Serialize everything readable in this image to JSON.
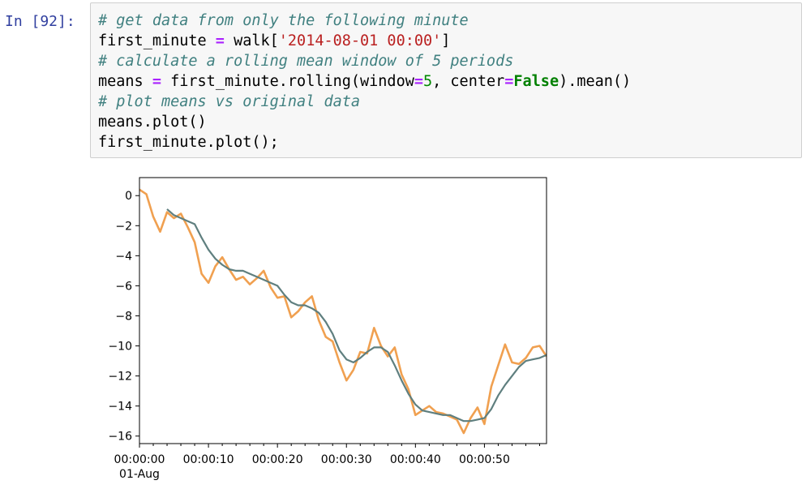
{
  "cell": {
    "prompt": "In [92]:",
    "code": {
      "line1_comment": "# get data from only the following minute",
      "line2_var": "first_minute",
      "line2_op": " = ",
      "line2_call": "walk[",
      "line2_string": "'2014-08-01 00:00'",
      "line2_close": "]",
      "line3_comment": "# calculate a rolling mean window of 5 periods",
      "line4_var": "means",
      "line4_op": " = ",
      "line4_call": "first_minute.rolling(window",
      "line4_eq": "=",
      "line4_num": "5",
      "line4_mid": ", center",
      "line4_eq2": "=",
      "line4_kw": "False",
      "line4_tail": ").mean()",
      "line5_comment": "# plot means vs original data",
      "line6": "means.plot()",
      "line7": "first_minute.plot();"
    }
  },
  "chart_data": {
    "type": "line",
    "xlabel": "",
    "ylabel": "",
    "x_ticks": [
      "00:00:00",
      "00:00:10",
      "00:00:20",
      "00:00:30",
      "00:00:40",
      "00:00:50"
    ],
    "x_tick_secondary": "01-Aug",
    "x_range": [
      0,
      59
    ],
    "y_ticks": [
      0,
      -2,
      -4,
      -6,
      -8,
      -10,
      -12,
      -14,
      -16
    ],
    "ylim": [
      -16.5,
      1.2
    ],
    "grid": false,
    "legend": "none",
    "colors": {
      "original": "#f0a050",
      "rolling_mean": "#5f7f7f"
    },
    "series": [
      {
        "key": "original",
        "x": [
          0,
          1,
          2,
          3,
          4,
          5,
          6,
          7,
          8,
          9,
          10,
          11,
          12,
          13,
          14,
          15,
          16,
          17,
          18,
          19,
          20,
          21,
          22,
          23,
          24,
          25,
          26,
          27,
          28,
          29,
          30,
          31,
          32,
          33,
          34,
          35,
          36,
          37,
          38,
          39,
          40,
          41,
          42,
          43,
          44,
          45,
          46,
          47,
          48,
          49,
          50,
          51,
          52,
          53,
          54,
          55,
          56,
          57,
          58,
          59
        ],
        "y": [
          0.4,
          0.1,
          -1.4,
          -2.4,
          -1.1,
          -1.5,
          -1.2,
          -2.1,
          -3.1,
          -5.2,
          -5.8,
          -4.7,
          -4.1,
          -4.9,
          -5.6,
          -5.4,
          -5.9,
          -5.5,
          -5.0,
          -6.1,
          -6.8,
          -6.7,
          -8.1,
          -7.7,
          -7.1,
          -6.7,
          -8.3,
          -9.4,
          -9.7,
          -11.1,
          -12.3,
          -11.6,
          -10.4,
          -10.5,
          -8.8,
          -10.0,
          -10.7,
          -10.1,
          -11.9,
          -12.9,
          -14.6,
          -14.3,
          -14.0,
          -14.4,
          -14.5,
          -14.7,
          -14.9,
          -15.8,
          -14.8,
          -14.1,
          -15.2,
          -12.7,
          -11.3,
          -9.9,
          -11.1,
          -11.2,
          -10.8,
          -10.1,
          -10.0,
          -10.7
        ]
      },
      {
        "key": "rolling_mean",
        "x": [
          4,
          5,
          6,
          7,
          8,
          9,
          10,
          11,
          12,
          13,
          14,
          15,
          16,
          17,
          18,
          19,
          20,
          21,
          22,
          23,
          24,
          25,
          26,
          27,
          28,
          29,
          30,
          31,
          32,
          33,
          34,
          35,
          36,
          37,
          38,
          39,
          40,
          41,
          42,
          43,
          44,
          45,
          46,
          47,
          48,
          49,
          50,
          51,
          52,
          53,
          54,
          55,
          56,
          57,
          58,
          59
        ],
        "y": [
          -0.9,
          -1.3,
          -1.5,
          -1.7,
          -1.9,
          -2.8,
          -3.6,
          -4.2,
          -4.6,
          -4.9,
          -5.0,
          -5.0,
          -5.2,
          -5.4,
          -5.6,
          -5.8,
          -6.0,
          -6.6,
          -7.1,
          -7.3,
          -7.3,
          -7.5,
          -7.8,
          -8.4,
          -9.2,
          -10.3,
          -10.9,
          -11.1,
          -10.8,
          -10.4,
          -10.1,
          -10.1,
          -10.4,
          -11.3,
          -12.3,
          -13.2,
          -13.9,
          -14.3,
          -14.4,
          -14.5,
          -14.6,
          -14.6,
          -14.8,
          -15.0,
          -15.0,
          -14.9,
          -14.8,
          -14.2,
          -13.3,
          -12.6,
          -12.0,
          -11.4,
          -11.0,
          -10.9,
          -10.8,
          -10.6
        ]
      }
    ]
  }
}
